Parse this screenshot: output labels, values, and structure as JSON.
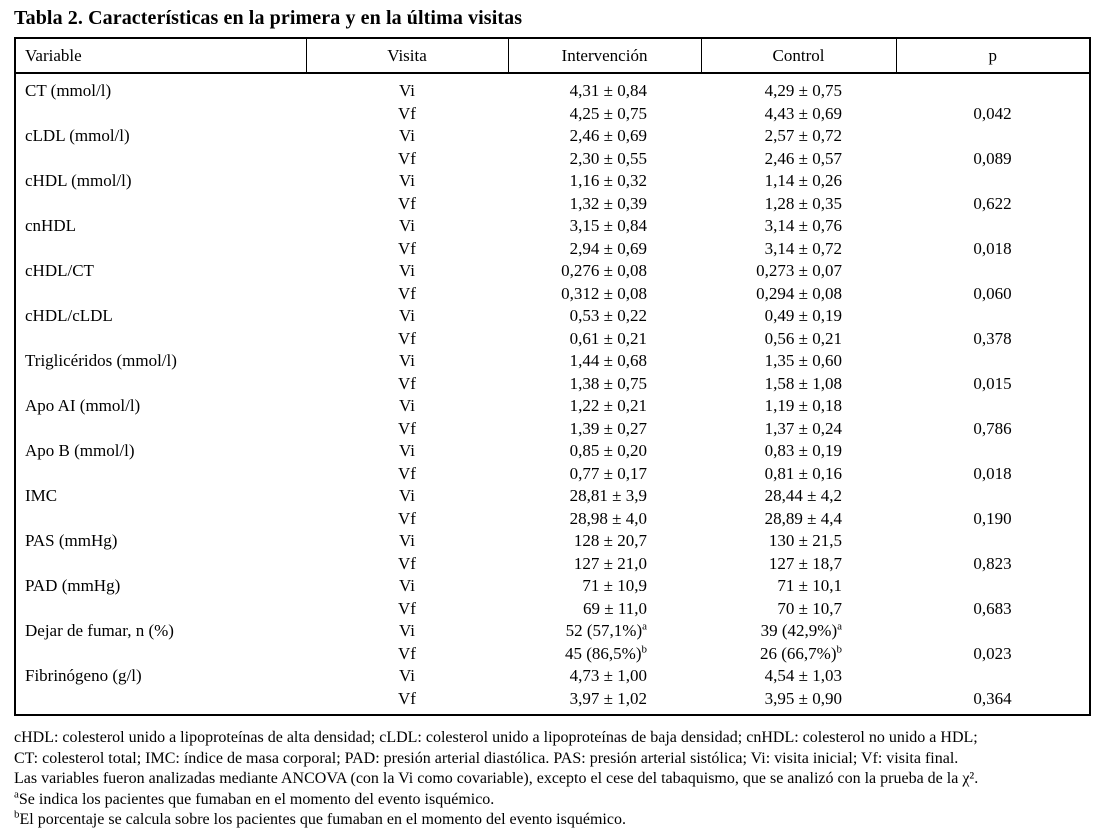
{
  "title": "Tabla 2. Características en la primera y en la última visitas",
  "table": {
    "headers": [
      "Variable",
      "Visita",
      "Intervención",
      "Control",
      "p"
    ],
    "rows": [
      {
        "variable": "CT (mmol/l)",
        "visita": "Vi",
        "intervencion": "4,31 ± 0,84",
        "control": "4,29 ± 0,75",
        "p": ""
      },
      {
        "variable": "",
        "visita": "Vf",
        "intervencion": "4,25 ± 0,75",
        "control": "4,43 ± 0,69",
        "p": "0,042"
      },
      {
        "variable": "cLDL (mmol/l)",
        "visita": "Vi",
        "intervencion": "2,46 ± 0,69",
        "control": "2,57 ± 0,72",
        "p": ""
      },
      {
        "variable": "",
        "visita": "Vf",
        "intervencion": "2,30 ± 0,55",
        "control": "2,46 ± 0,57",
        "p": "0,089"
      },
      {
        "variable": "cHDL (mmol/l)",
        "visita": "Vi",
        "intervencion": "1,16 ± 0,32",
        "control": "1,14 ± 0,26",
        "p": ""
      },
      {
        "variable": "",
        "visita": "Vf",
        "intervencion": "1,32 ± 0,39",
        "control": "1,28 ± 0,35",
        "p": "0,622"
      },
      {
        "variable": "cnHDL",
        "visita": "Vi",
        "intervencion": "3,15 ± 0,84",
        "control": "3,14 ± 0,76",
        "p": ""
      },
      {
        "variable": "",
        "visita": "Vf",
        "intervencion": "2,94 ± 0,69",
        "control": "3,14 ± 0,72",
        "p": "0,018"
      },
      {
        "variable": "cHDL/CT",
        "visita": "Vi",
        "intervencion": "0,276 ± 0,08",
        "control": "0,273 ± 0,07",
        "p": ""
      },
      {
        "variable": "",
        "visita": "Vf",
        "intervencion": "0,312 ± 0,08",
        "control": "0,294 ± 0,08",
        "p": "0,060"
      },
      {
        "variable": "cHDL/cLDL",
        "visita": "Vi",
        "intervencion": "0,53 ± 0,22",
        "control": "0,49 ± 0,19",
        "p": ""
      },
      {
        "variable": "",
        "visita": "Vf",
        "intervencion": "0,61 ± 0,21",
        "control": "0,56 ± 0,21",
        "p": "0,378"
      },
      {
        "variable": "Triglicéridos (mmol/l)",
        "visita": "Vi",
        "intervencion": "1,44 ± 0,68",
        "control": "1,35 ± 0,60",
        "p": ""
      },
      {
        "variable": "",
        "visita": "Vf",
        "intervencion": "1,38 ± 0,75",
        "control": "1,58 ± 1,08",
        "p": "0,015"
      },
      {
        "variable": "Apo AI (mmol/l)",
        "visita": "Vi",
        "intervencion": "1,22 ± 0,21",
        "control": "1,19 ± 0,18",
        "p": ""
      },
      {
        "variable": "",
        "visita": "Vf",
        "intervencion": "1,39 ± 0,27",
        "control": "1,37 ± 0,24",
        "p": "0,786"
      },
      {
        "variable": "Apo B (mmol/l)",
        "visita": "Vi",
        "intervencion": "0,85 ± 0,20",
        "control": "0,83 ± 0,19",
        "p": ""
      },
      {
        "variable": "",
        "visita": "Vf",
        "intervencion": "0,77 ± 0,17",
        "control": "0,81 ± 0,16",
        "p": "0,018"
      },
      {
        "variable": "IMC",
        "visita": "Vi",
        "intervencion": "28,81 ± 3,9",
        "control": "28,44 ± 4,2",
        "p": ""
      },
      {
        "variable": "",
        "visita": "Vf",
        "intervencion": "28,98 ± 4,0",
        "control": "28,89 ± 4,4",
        "p": "0,190"
      },
      {
        "variable": "PAS (mmHg)",
        "visita": "Vi",
        "intervencion": "128 ± 20,7",
        "control": "130 ± 21,5",
        "p": ""
      },
      {
        "variable": "",
        "visita": "Vf",
        "intervencion": "127 ± 21,0",
        "control": "127 ± 18,7",
        "p": "0,823"
      },
      {
        "variable": "PAD (mmHg)",
        "visita": "Vi",
        "intervencion": "71 ± 10,9",
        "control": "71 ± 10,1",
        "p": ""
      },
      {
        "variable": "",
        "visita": "Vf",
        "intervencion": "69 ± 11,0",
        "control": "70 ± 10,7",
        "p": "0,683"
      },
      {
        "variable": "Dejar de fumar, n (%)",
        "visita": "Vi",
        "intervencion": "52 (57,1%)",
        "intervencion_sup": "a",
        "control": "39 (42,9%)",
        "control_sup": "a",
        "p": ""
      },
      {
        "variable": "",
        "visita": "Vf",
        "intervencion": "45 (86,5%)",
        "intervencion_sup": "b",
        "control": "26 (66,7%)",
        "control_sup": "b",
        "p": "0,023"
      },
      {
        "variable": "Fibrinógeno (g/l)",
        "visita": "Vi",
        "intervencion": "4,73 ± 1,00",
        "control": "4,54 ± 1,03",
        "p": ""
      },
      {
        "variable": "",
        "visita": "Vf",
        "intervencion": "3,97 ± 1,02",
        "control": "3,95 ± 0,90",
        "p": "0,364"
      }
    ]
  },
  "footnotes": [
    {
      "sup": "",
      "text": "cHDL: colesterol unido a lipoproteínas de alta densidad; cLDL: colesterol unido a lipoproteínas de baja densidad; cnHDL: colesterol no unido a HDL;"
    },
    {
      "sup": "",
      "text": "CT: colesterol total; IMC: índice de masa corporal; PAD: presión arterial diastólica. PAS: presión arterial sistólica; Vi: visita inicial; Vf: visita final."
    },
    {
      "sup": "",
      "text": "Las variables fueron analizadas mediante ANCOVA (con la Vi como covariable), excepto el cese del tabaquismo, que se analizó con la prueba de la χ²."
    },
    {
      "sup": "a",
      "text": "Se indica los pacientes que fumaban en el momento del evento isquémico."
    },
    {
      "sup": "b",
      "text": "El porcentaje se calcula sobre los pacientes que fumaban en el momento del evento isquémico."
    }
  ]
}
